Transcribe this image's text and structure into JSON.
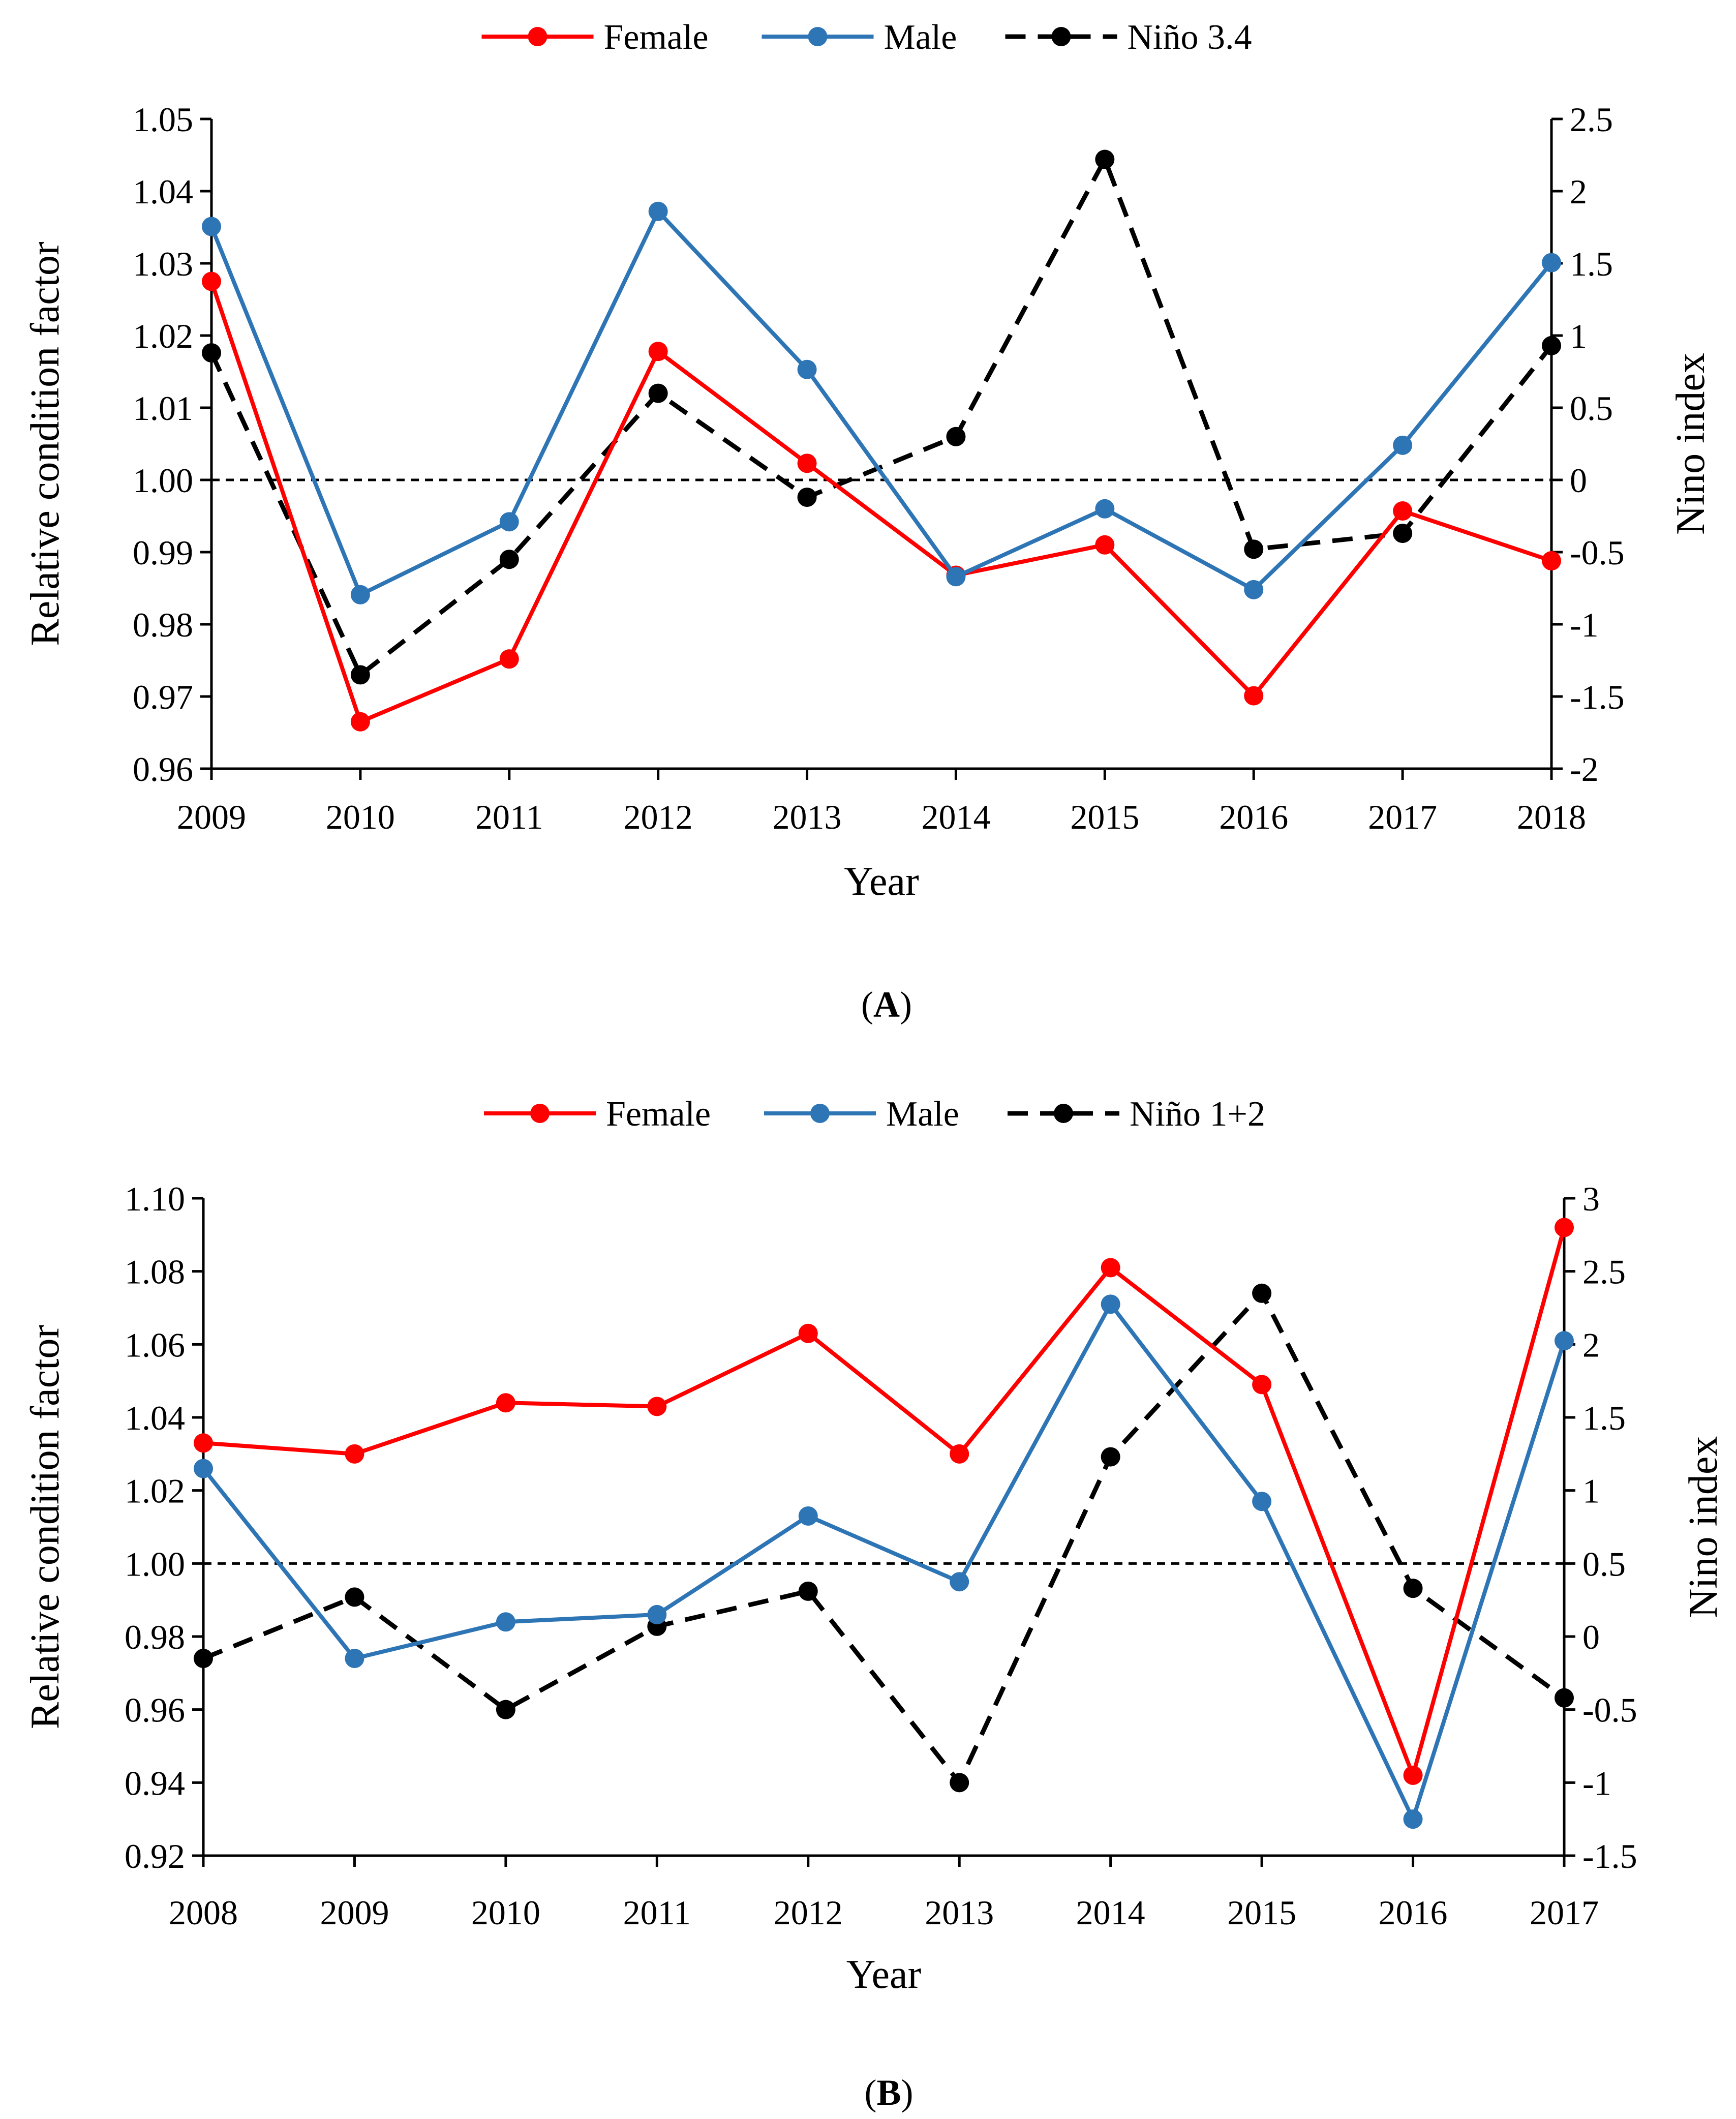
{
  "chart_data": [
    {
      "type": "line",
      "panel_label": "A",
      "xlabel": "Year",
      "ylabel": "Relative condition factor",
      "y2label": "Nino index",
      "categories": [
        "2009",
        "2010",
        "2011",
        "2012",
        "2013",
        "2014",
        "2015",
        "2016",
        "2017",
        "2018"
      ],
      "ylim": [
        0.96,
        1.05
      ],
      "yticks": [
        "0.96",
        "0.97",
        "0.98",
        "0.99",
        "1.00",
        "1.01",
        "1.02",
        "1.03",
        "1.04",
        "1.05"
      ],
      "y2lim": [
        -2,
        2.5
      ],
      "y2ticks": [
        "-2",
        "-1.5",
        "-1",
        "-0.5",
        "0",
        "0.5",
        "1",
        "1.5",
        "2",
        "2.5"
      ],
      "reference_line": 1.0,
      "legend_position": "top-center",
      "series": [
        {
          "name": "Female",
          "axis": "left",
          "color": "#ff0000",
          "dashed": false,
          "values": [
            1.0275,
            0.9665,
            0.9752,
            1.0178,
            1.0023,
            0.9868,
            0.991,
            0.9701,
            0.9957,
            0.9888
          ]
        },
        {
          "name": "Male",
          "axis": "left",
          "color": "#2e75b6",
          "dashed": false,
          "values": [
            1.0351,
            0.9841,
            0.9942,
            1.0372,
            1.0153,
            0.9866,
            0.996,
            0.9848,
            1.0048,
            1.0301
          ]
        },
        {
          "name": "Niño 3.4",
          "axis": "right",
          "color": "#000000",
          "dashed": true,
          "values": [
            0.88,
            -1.35,
            -0.55,
            0.6,
            -0.12,
            0.3,
            2.22,
            -0.48,
            -0.37,
            0.93
          ]
        }
      ]
    },
    {
      "type": "line",
      "panel_label": "B",
      "xlabel": "Year",
      "ylabel": "Relative condition factor",
      "y2label": "Nino index",
      "categories": [
        "2008",
        "2009",
        "2010",
        "2011",
        "2012",
        "2013",
        "2014",
        "2015",
        "2016",
        "2017"
      ],
      "ylim": [
        0.92,
        1.1
      ],
      "yticks": [
        "0.92",
        "0.94",
        "0.96",
        "0.98",
        "1.00",
        "1.02",
        "1.04",
        "1.06",
        "1.08",
        "1.10"
      ],
      "y2lim": [
        -1.5,
        3
      ],
      "y2ticks": [
        "-1.5",
        "-1",
        "-0.5",
        "0",
        "0.5",
        "1",
        "1.5",
        "2",
        "2.5",
        "3"
      ],
      "reference_line": 1.0,
      "legend_position": "top-center",
      "series": [
        {
          "name": "Female",
          "axis": "left",
          "color": "#ff0000",
          "dashed": false,
          "values": [
            1.033,
            1.03,
            1.044,
            1.043,
            1.063,
            1.03,
            1.081,
            1.049,
            0.942,
            1.092
          ]
        },
        {
          "name": "Male",
          "axis": "left",
          "color": "#2e75b6",
          "dashed": false,
          "values": [
            1.026,
            0.974,
            0.984,
            0.986,
            1.013,
            0.995,
            1.071,
            1.017,
            0.93,
            1.061
          ]
        },
        {
          "name": "Niño 1+2",
          "axis": "right",
          "color": "#000000",
          "dashed": true,
          "values": [
            -0.15,
            0.27,
            -0.5,
            0.07,
            0.31,
            -1.0,
            1.23,
            2.35,
            0.33,
            -0.42
          ]
        }
      ]
    }
  ]
}
